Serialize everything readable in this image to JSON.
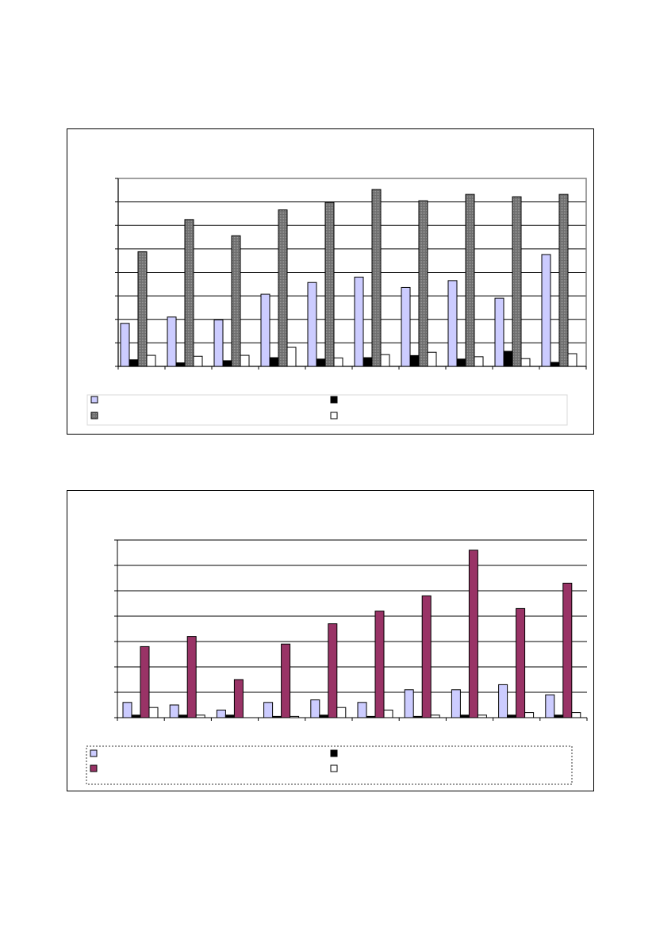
{
  "colors": {
    "series1": "#ccccff",
    "series2": "#000000",
    "series3_chart1": "#6e6e6e",
    "series3_chart2": "#993366",
    "series4": "#ffffff"
  },
  "chart_data": [
    {
      "type": "bar",
      "title": "",
      "xlabel": "",
      "ylabel": "",
      "ylim": [
        0,
        8
      ],
      "grid": true,
      "legend_placement": "bottom",
      "categories": [
        "",
        "",
        "",
        "",
        "",
        "",
        "",
        "",
        "",
        ""
      ],
      "series": [
        {
          "values": [
            1.83,
            2.1,
            1.98,
            3.07,
            3.57,
            3.8,
            3.36,
            3.65,
            2.9,
            4.76
          ]
        },
        {
          "values": [
            0.28,
            0.15,
            0.24,
            0.37,
            0.31,
            0.37,
            0.46,
            0.31,
            0.64,
            0.17
          ]
        },
        {
          "values": [
            4.88,
            6.25,
            5.56,
            6.66,
            6.98,
            7.53,
            7.05,
            7.32,
            7.22,
            7.32
          ]
        },
        {
          "values": [
            0.47,
            0.43,
            0.47,
            0.81,
            0.36,
            0.5,
            0.6,
            0.41,
            0.33,
            0.54
          ]
        }
      ]
    },
    {
      "type": "bar",
      "title": "",
      "xlabel": "",
      "ylabel": "",
      "ylim": [
        0,
        7
      ],
      "grid": true,
      "legend_placement": "bottom",
      "categories": [
        "",
        "",
        "",
        "",
        "",
        "",
        "",
        "",
        "",
        ""
      ],
      "series": [
        {
          "values": [
            0.6,
            0.5,
            0.3,
            0.6,
            0.7,
            0.6,
            1.1,
            1.1,
            1.3,
            0.9
          ]
        },
        {
          "values": [
            0.1,
            0.1,
            0.1,
            0.05,
            0.1,
            0.05,
            0.05,
            0.1,
            0.1,
            0.1
          ]
        },
        {
          "values": [
            2.8,
            3.2,
            1.5,
            2.9,
            3.7,
            4.2,
            4.8,
            6.6,
            4.3,
            5.3
          ]
        },
        {
          "values": [
            0.4,
            0.1,
            0.0,
            0.05,
            0.4,
            0.3,
            0.1,
            0.1,
            0.2,
            0.2
          ]
        }
      ]
    }
  ]
}
